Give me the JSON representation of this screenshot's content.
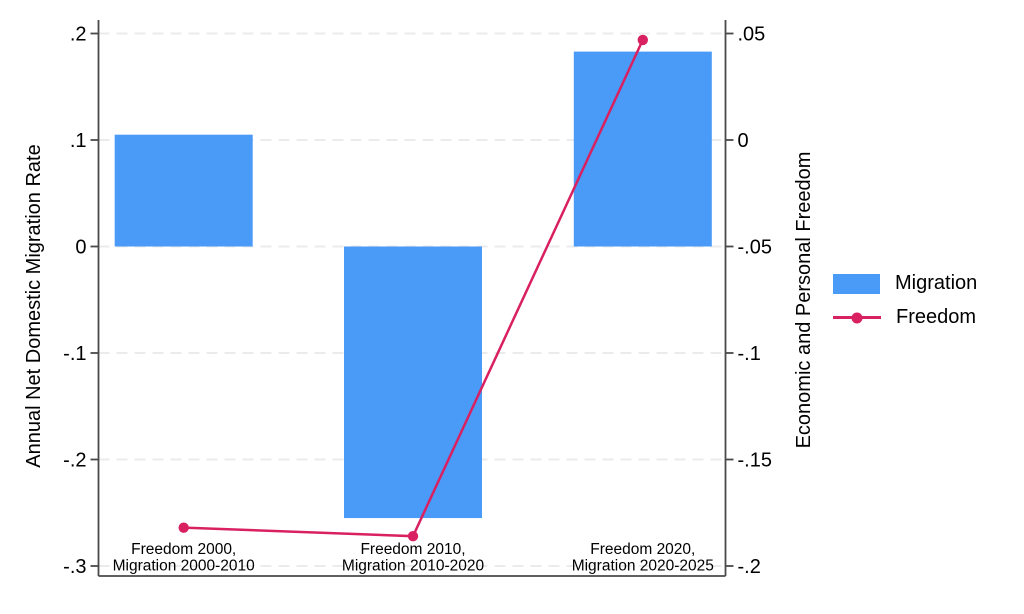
{
  "chart_data": {
    "type": "bar",
    "subtype": "dual-axis combo: bars (left axis) + line with markers (right axis)",
    "categories": [
      [
        "Freedom 2000,",
        "Migration 2000-2010"
      ],
      [
        "Freedom 2010,",
        "Migration 2010-2020"
      ],
      [
        "Freedom 2020,",
        "Migration 2020-2025"
      ]
    ],
    "series": [
      {
        "name": "Migration",
        "type": "bar",
        "axis": "left",
        "color": "#4A9AF7",
        "values": [
          0.105,
          -0.255,
          0.183
        ]
      },
      {
        "name": "Freedom",
        "type": "line",
        "axis": "right",
        "color": "#D92161",
        "values": [
          -0.182,
          -0.186,
          0.047
        ]
      }
    ],
    "left_axis": {
      "label": "Annual Net Domestic Migration Rate",
      "range": [
        -0.3,
        0.2
      ],
      "ticks": [
        {
          "v": 0.2,
          "label": ".2"
        },
        {
          "v": 0.1,
          "label": ".1"
        },
        {
          "v": 0,
          "label": "0"
        },
        {
          "v": -0.1,
          "label": "-.1"
        },
        {
          "v": -0.2,
          "label": "-.2"
        },
        {
          "v": -0.3,
          "label": "-.3"
        }
      ]
    },
    "right_axis": {
      "label": "Economic and Personal Freedom",
      "range": [
        -0.2,
        0.05
      ],
      "ticks": [
        {
          "v": 0.05,
          "label": ".05"
        },
        {
          "v": 0,
          "label": "0"
        },
        {
          "v": -0.05,
          "label": "-.05"
        },
        {
          "v": -0.1,
          "label": "-.1"
        },
        {
          "v": -0.15,
          "label": "-.15"
        },
        {
          "v": -0.2,
          "label": "-.2"
        }
      ]
    },
    "grid": true,
    "legend": {
      "position": "right-middle",
      "entries": [
        "Migration",
        "Freedom"
      ]
    },
    "colors": {
      "background": "#ffffff",
      "axis": "#4a4a4a",
      "gridline": "#ebebeb",
      "text": "#000000"
    }
  }
}
